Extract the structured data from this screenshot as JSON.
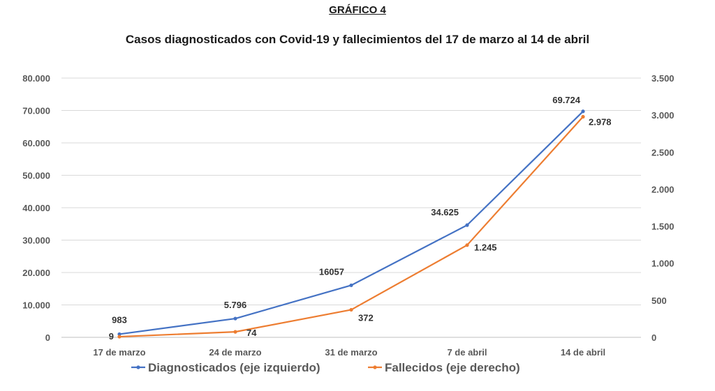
{
  "supertitle": "GRÁFICO 4",
  "chart_data": {
    "type": "line",
    "title": "Casos diagnosticados con Covid-19 y fallecimientos del 17 de marzo al 14 de abril",
    "categories": [
      "17 de marzo",
      "24 de marzo",
      "31 de marzo",
      "7 de abril",
      "14 de abril"
    ],
    "y_left": {
      "ylim": [
        0,
        80000
      ],
      "ticks": [
        0,
        10000,
        20000,
        30000,
        40000,
        50000,
        60000,
        70000,
        80000
      ],
      "tick_labels": [
        "0",
        "10.000",
        "20.000",
        "30.000",
        "40.000",
        "50.000",
        "60.000",
        "70.000",
        "80.000"
      ]
    },
    "y_right": {
      "ylim": [
        0,
        3500
      ],
      "ticks": [
        0,
        500,
        1000,
        1500,
        2000,
        2500,
        3000,
        3500
      ],
      "tick_labels": [
        "0",
        "500",
        "1.000",
        "1.500",
        "2.000",
        "2.500",
        "3.000",
        "3.500"
      ]
    },
    "series": [
      {
        "name": "Diagnosticados (eje izquierdo)",
        "axis": "left",
        "color": "#4472C4",
        "values": [
          983,
          5796,
          16057,
          34625,
          69724
        ],
        "labels": [
          "983",
          "5.796",
          "16057",
          "34.625",
          "69.724"
        ]
      },
      {
        "name": "Fallecidos (eje derecho)",
        "axis": "right",
        "color": "#ED7D31",
        "values": [
          9,
          74,
          372,
          1245,
          2978
        ],
        "labels": [
          "9",
          "74",
          "372",
          "1.245",
          "2.978"
        ]
      }
    ],
    "grid": true,
    "legend_position": "bottom"
  }
}
